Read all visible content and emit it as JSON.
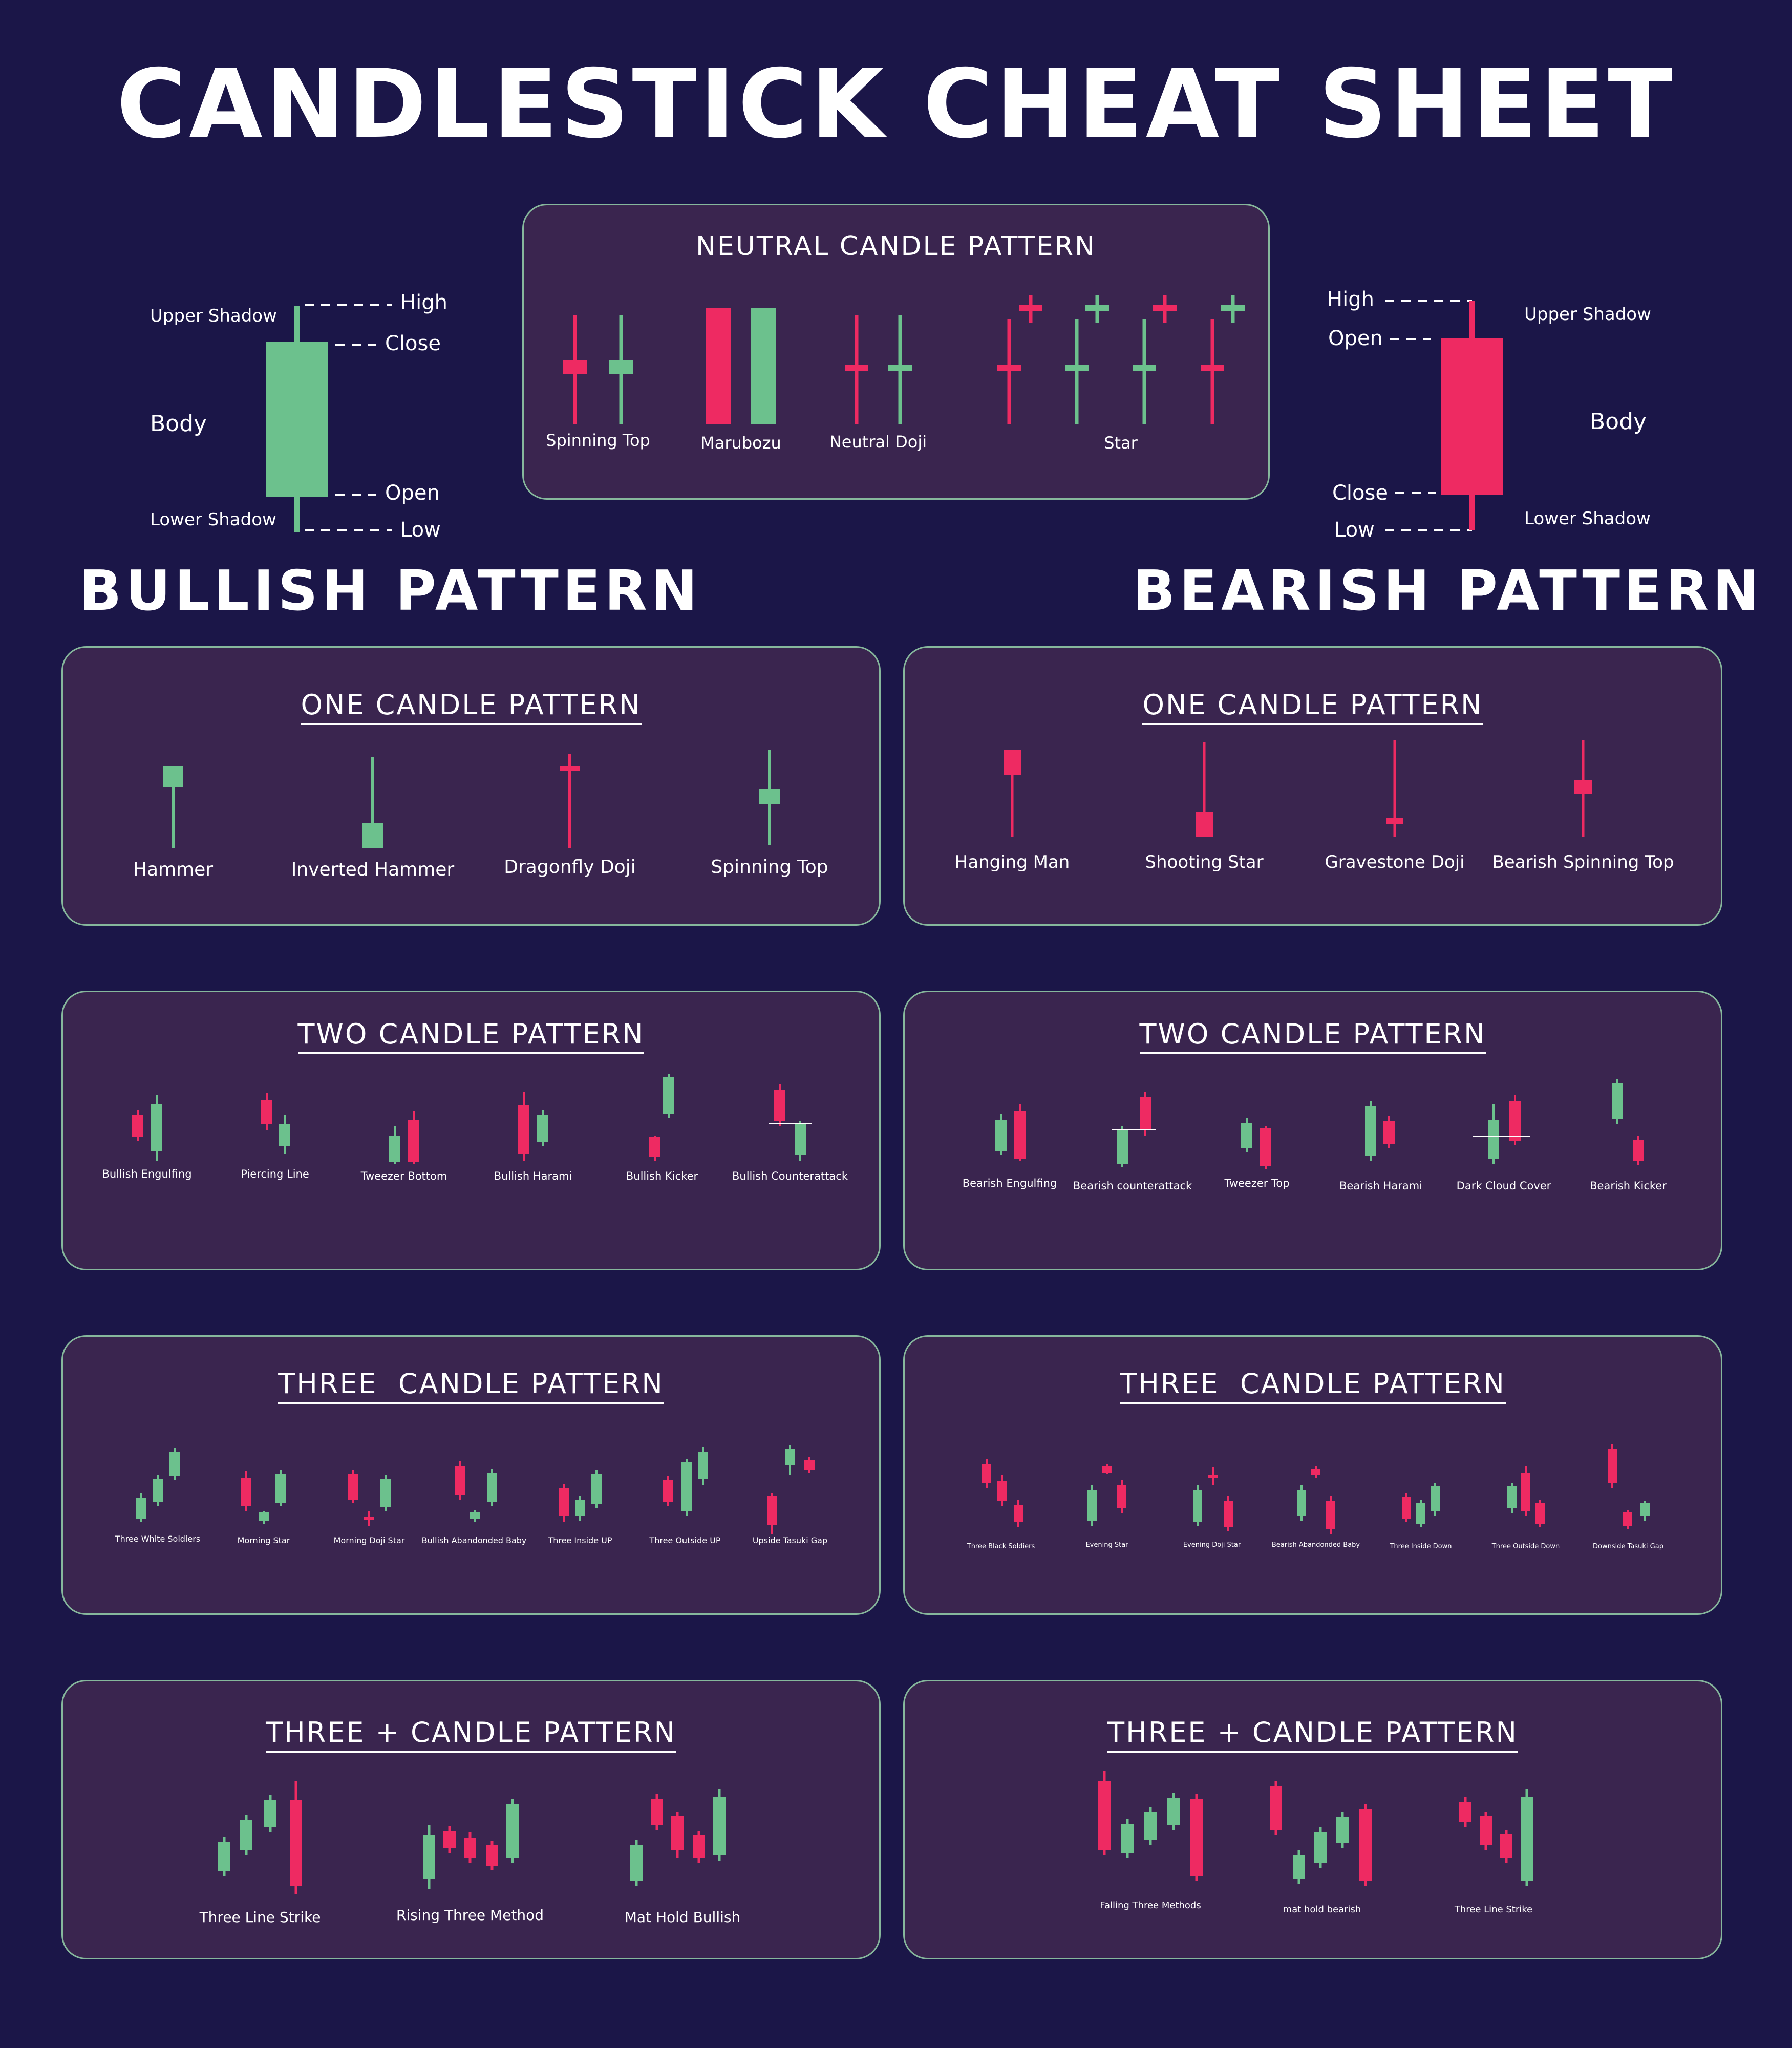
{
  "title": "CANDLESTICK CHEAT SHEET",
  "colors": {
    "background": "#1b1648",
    "panel": "#3a254f",
    "panel_border": "#86b79c",
    "bullish": "#6cc18d",
    "bearish": "#ee2a62",
    "text": "#ffffff"
  },
  "bullish_anatomy": {
    "upper_shadow": "Upper Shadow",
    "high": "High",
    "close": "Close",
    "body": "Body",
    "open": "Open",
    "lower_shadow": "Lower Shadow",
    "low": "Low"
  },
  "bearish_anatomy": {
    "high": "High",
    "open": "Open",
    "upper_shadow": "Upper Shadow",
    "body": "Body",
    "close": "Close",
    "low": "Low",
    "lower_shadow": "Lower Shadow"
  },
  "neutral": {
    "title": "NEUTRAL CANDLE PATTERN",
    "patterns": [
      "Spinning Top",
      "Marubozu",
      "Neutral Doji",
      "Star"
    ]
  },
  "bullish_title": "BULLISH PATTERN",
  "bearish_title": "BEARISH PATTERN",
  "bullish": {
    "one": {
      "title": "ONE CANDLE PATTERN",
      "patterns": [
        "Hammer",
        "Inverted Hammer",
        "Dragonfly Doji",
        "Spinning Top"
      ]
    },
    "two": {
      "title": "TWO CANDLE PATTERN",
      "patterns": [
        "Bullish Engulfing",
        "Piercing Line",
        "Tweezer Bottom",
        "Bullish Harami",
        "Bullish Kicker",
        "Bullish Counterattack"
      ]
    },
    "three": {
      "title": "THREE  CANDLE PATTERN",
      "patterns": [
        "Three White Soldiers",
        "Morning Star",
        "Morning Doji Star",
        "Bullish Abandonded Baby",
        "Three Inside UP",
        "Three Outside UP",
        "Upside Tasuki Gap"
      ]
    },
    "threeplus": {
      "title": "THREE + CANDLE PATTERN",
      "patterns": [
        "Three Line Strike",
        "Rising Three Method",
        "Mat Hold Bullish"
      ]
    }
  },
  "bearish": {
    "one": {
      "title": "ONE CANDLE PATTERN",
      "patterns": [
        "Hanging Man",
        "Shooting Star",
        "Gravestone Doji",
        "Bearish Spinning Top"
      ]
    },
    "two": {
      "title": "TWO CANDLE PATTERN",
      "patterns": [
        "Bearish Engulfing",
        "Bearish counterattack",
        "Tweezer Top",
        "Bearish Harami",
        "Dark Cloud Cover",
        "Bearish Kicker"
      ]
    },
    "three": {
      "title": "THREE  CANDLE PATTERN",
      "patterns": [
        "Three Black Soldiers",
        "Evening Star",
        "Evening Doji Star",
        "Bearish Abandonded Baby",
        "Three Inside Down",
        "Three Outside Down",
        "Downside Tasuki Gap"
      ]
    },
    "threeplus": {
      "title": "THREE + CANDLE PATTERN",
      "patterns": [
        "Falling Three Methods",
        "mat hold bearish",
        "Three Line Strike"
      ]
    }
  }
}
